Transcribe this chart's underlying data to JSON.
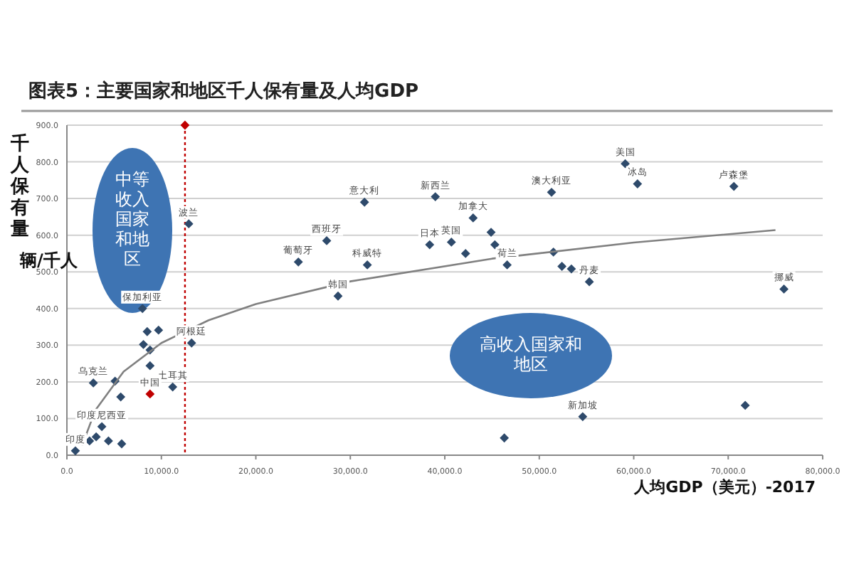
{
  "chart_data": {
    "type": "scatter",
    "title": "图表5：主要国家和地区千人保有量及人均GDP",
    "ylabel": "千人保有量",
    "xlabel": "人均GDP（美元）-2017",
    "xlim": [
      0,
      80000
    ],
    "ylim": [
      0,
      900
    ],
    "xticks": [
      {
        "value": 0,
        "label": "0.0"
      },
      {
        "value": 10000,
        "label": "10,000.0"
      },
      {
        "value": 20000,
        "label": "20,000.0"
      },
      {
        "value": 30000,
        "label": "30,000.0"
      },
      {
        "value": 40000,
        "label": "40,000.0"
      },
      {
        "value": 50000,
        "label": "50,000.0"
      },
      {
        "value": 60000,
        "label": "60,000.0"
      },
      {
        "value": 70000,
        "label": "70,000.0"
      },
      {
        "value": 80000,
        "label": "80,000.0"
      }
    ],
    "yticks": [
      {
        "value": 0,
        "label": "0.0"
      },
      {
        "value": 100,
        "label": "100.0"
      },
      {
        "value": 200,
        "label": "200.0"
      },
      {
        "value": 300,
        "label": "300.0"
      },
      {
        "value": 400,
        "label": "400.0"
      },
      {
        "value": 500,
        "label": "500.0"
      },
      {
        "value": 600,
        "label": "600.0"
      },
      {
        "value": 700,
        "label": "700.0"
      },
      {
        "value": 800,
        "label": "800.0"
      },
      {
        "value": 900,
        "label": "900.0"
      }
    ],
    "grid": "y",
    "ref_lines": [
      {
        "axis": "x",
        "value": 12500,
        "color": "#c00000",
        "line_style": "dotted"
      }
    ],
    "series": [
      {
        "marker": "diamond",
        "color": "#2e4a6b",
        "x": [
          31500,
          39000,
          27500,
          24500,
          31800,
          28700,
          38400,
          40700,
          42200,
          43000,
          44900,
          45300,
          46600,
          51300,
          59100,
          60400,
          70600,
          75900,
          55300,
          52400,
          53400,
          51500,
          54600,
          71800,
          46300,
          12900,
          13200,
          11200,
          8800,
          12500,
          8000,
          8100,
          8800,
          9700,
          8500,
          8800,
          5700,
          2800,
          5100,
          4400,
          3700,
          900,
          2400,
          5800,
          3100
        ],
        "values": [
          690,
          705,
          585,
          527,
          519,
          434,
          574,
          581,
          550,
          647,
          608,
          574,
          519,
          717,
          795,
          740,
          733,
          453,
          473,
          515,
          508,
          554,
          105,
          136,
          47,
          631,
          306,
          186,
          167,
          900,
          400,
          302,
          287,
          341,
          337,
          244,
          159,
          197,
          202,
          39,
          78,
          12,
          39,
          31,
          50
        ],
        "colors": [
          "#2e4a6b",
          "#2e4a6b",
          "#2e4a6b",
          "#2e4a6b",
          "#2e4a6b",
          "#2e4a6b",
          "#2e4a6b",
          "#2e4a6b",
          "#2e4a6b",
          "#2e4a6b",
          "#2e4a6b",
          "#2e4a6b",
          "#2e4a6b",
          "#2e4a6b",
          "#2e4a6b",
          "#2e4a6b",
          "#2e4a6b",
          "#2e4a6b",
          "#2e4a6b",
          "#2e4a6b",
          "#2e4a6b",
          "#2e4a6b",
          "#2e4a6b",
          "#2e4a6b",
          "#2e4a6b",
          "#2e4a6b",
          "#2e4a6b",
          "#2e4a6b",
          "#c00000",
          "#c00000",
          "#2e4a6b",
          "#2e4a6b",
          "#2e4a6b",
          "#2e4a6b",
          "#2e4a6b",
          "#2e4a6b",
          "#2e4a6b",
          "#2e4a6b",
          "#2e4a6b",
          "#2e4a6b",
          "#2e4a6b",
          "#2e4a6b",
          "#2e4a6b",
          "#2e4a6b",
          "#2e4a6b"
        ]
      },
      {
        "type": "line",
        "color": "#808080",
        "x": [
          1600,
          3000,
          6000,
          10000,
          15000,
          20000,
          30000,
          45000,
          60000,
          75000
        ],
        "values": [
          26,
          122,
          228,
          306,
          368,
          412,
          474,
          536,
          580,
          614
        ]
      }
    ],
    "annotations": [
      "辆/千人",
      "中等收入国家和地区",
      "高收入国家和地区",
      {
        "text": "意大利",
        "x": 31500,
        "y": 690
      },
      {
        "text": "新西兰",
        "x": 39000,
        "y": 705
      },
      {
        "text": "西班牙",
        "x": 27500,
        "y": 585
      },
      {
        "text": "葡萄牙",
        "x": 24500,
        "y": 527
      },
      {
        "text": "科威特",
        "x": 31800,
        "y": 519
      },
      {
        "text": "韩国",
        "x": 28700,
        "y": 434
      },
      {
        "text": "日本",
        "x": 38400,
        "y": 574
      },
      {
        "text": "英国",
        "x": 40700,
        "y": 581
      },
      {
        "text": "加拿大",
        "x": 43000,
        "y": 647
      },
      {
        "text": "荷兰",
        "x": 46600,
        "y": 519
      },
      {
        "text": "澳大利亚",
        "x": 51300,
        "y": 717
      },
      {
        "text": "美国",
        "x": 59100,
        "y": 795
      },
      {
        "text": "冰岛",
        "x": 60400,
        "y": 740
      },
      {
        "text": "卢森堡",
        "x": 70600,
        "y": 733
      },
      {
        "text": "挪威",
        "x": 75900,
        "y": 453
      },
      {
        "text": "丹麦",
        "x": 55300,
        "y": 473
      },
      {
        "text": "新加坡",
        "x": 54600,
        "y": 105
      },
      {
        "text": "波兰",
        "x": 12900,
        "y": 631
      },
      {
        "text": "阿根廷",
        "x": 13200,
        "y": 306
      },
      {
        "text": "土耳其",
        "x": 11200,
        "y": 186
      },
      {
        "text": "中国",
        "x": 8800,
        "y": 167
      },
      {
        "text": "保加利亚",
        "x": 8000,
        "y": 400
      },
      {
        "text": "乌克兰",
        "x": 2800,
        "y": 197
      },
      {
        "text": "印度尼西亚",
        "x": 3700,
        "y": 78
      },
      {
        "text": "印度",
        "x": 900,
        "y": 12
      }
    ]
  }
}
